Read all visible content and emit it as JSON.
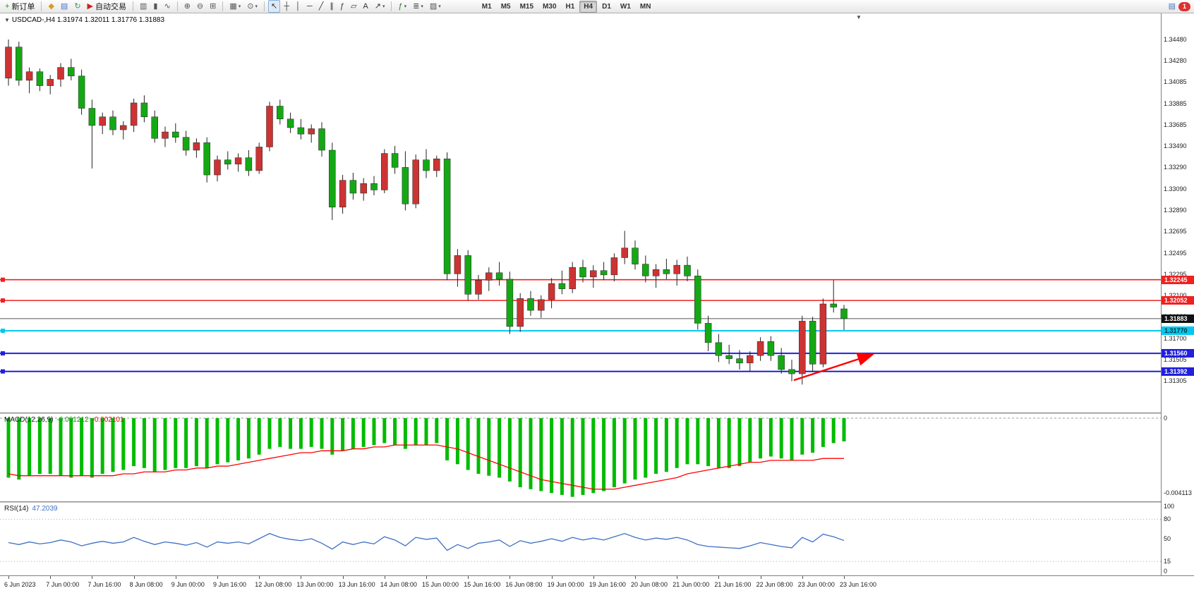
{
  "toolbar": {
    "groups": [
      [
        {
          "name": "new-order",
          "glyph": "+",
          "color": "#18a018",
          "label": "新订单"
        }
      ],
      [
        {
          "name": "charts-profile",
          "glyph": "◆",
          "color": "#dd9922"
        },
        {
          "name": "market-watch",
          "glyph": "▤",
          "color": "#4a74c0"
        },
        {
          "name": "refresh",
          "glyph": "↻",
          "color": "#22a060"
        },
        {
          "name": "auto-trading",
          "glyph": "▶",
          "color": "#cc2222",
          "label": "自动交易"
        }
      ],
      [
        {
          "name": "bar-chart-mode",
          "glyph": "▥",
          "color": "#555555"
        },
        {
          "name": "candle-chart-mode",
          "glyph": "▮",
          "color": "#555555"
        },
        {
          "name": "line-chart-mode",
          "glyph": "∿",
          "color": "#555555"
        }
      ],
      [
        {
          "name": "zoom-in",
          "glyph": "⊕",
          "color": "#555555"
        },
        {
          "name": "zoom-out",
          "glyph": "⊖",
          "color": "#555555"
        },
        {
          "name": "tile-windows",
          "glyph": "⊞",
          "color": "#555555"
        }
      ],
      [
        {
          "name": "new-chart",
          "glyph": "▦",
          "color": "#555555",
          "dropdown": true
        },
        {
          "name": "profiles",
          "glyph": "⊙",
          "color": "#555555",
          "dropdown": true
        }
      ],
      [
        {
          "name": "cursor-tool",
          "glyph": "↖",
          "color": "#333333",
          "active": true
        },
        {
          "name": "crosshair-tool",
          "glyph": "┼",
          "color": "#333333"
        },
        {
          "name": "vertical-line-tool",
          "glyph": "│",
          "color": "#333333"
        },
        {
          "name": "horizontal-line-tool",
          "glyph": "─",
          "color": "#333333"
        },
        {
          "name": "trendline-tool",
          "glyph": "╱",
          "color": "#333333"
        },
        {
          "name": "channel-tool",
          "glyph": "∥",
          "color": "#333333"
        },
        {
          "name": "fibonacci-tool",
          "glyph": "ƒ",
          "color": "#333333"
        },
        {
          "name": "shapes-tool",
          "glyph": "▱",
          "color": "#333333"
        },
        {
          "name": "text-tool",
          "glyph": "A",
          "color": "#333333"
        },
        {
          "name": "arrow-tool",
          "glyph": "↗",
          "color": "#333333",
          "dropdown": true
        }
      ],
      [
        {
          "name": "indicators",
          "glyph": "ƒ",
          "color": "#2a7a2a",
          "dropdown": true
        },
        {
          "name": "periods",
          "glyph": "≣",
          "color": "#555555",
          "dropdown": true
        },
        {
          "name": "templates",
          "glyph": "▨",
          "color": "#555555",
          "dropdown": true
        }
      ]
    ],
    "timeframes": [
      "M1",
      "M5",
      "M15",
      "M30",
      "H1",
      "H4",
      "D1",
      "W1",
      "MN"
    ],
    "active_timeframe": "H4",
    "notification_count": "1"
  },
  "chart": {
    "header": "USDCAD-,H4  1.31974 1.32011 1.31776 1.31883"
  },
  "chart_data": {
    "type": "candlestick",
    "symbol": "USDCAD",
    "period": "H4",
    "ohlc_current": {
      "open": "1.31974",
      "high": "1.32011",
      "low": "1.31776",
      "close": "1.31883"
    },
    "colors": {
      "up": "#cc3333",
      "down": "#15a815",
      "wick": "#222222",
      "macd_hist": "#00bb00",
      "macd_signal": "#ff0000",
      "rsi": "#3e6fc4"
    },
    "price_axis": {
      "top_price": 1.3448,
      "bottom_price": 1.31305,
      "labels": [
        "1.34480",
        "1.34280",
        "1.34085",
        "1.33885",
        "1.33685",
        "1.33490",
        "1.33290",
        "1.33090",
        "1.32890",
        "1.32695",
        "1.32495",
        "1.32295",
        "1.32100",
        "1.31900",
        "1.31700",
        "1.31505",
        "1.31305"
      ]
    },
    "time_labels": [
      "6 Jun 2023",
      "7 Jun 00:00",
      "7 Jun 16:00",
      "8 Jun 08:00",
      "9 Jun 00:00",
      "9 Jun 16:00",
      "12 Jun 08:00",
      "13 Jun 00:00",
      "13 Jun 16:00",
      "14 Jun 08:00",
      "15 Jun 00:00",
      "15 Jun 16:00",
      "16 Jun 08:00",
      "19 Jun 00:00",
      "19 Jun 16:00",
      "20 Jun 08:00",
      "21 Jun 00:00",
      "21 Jun 16:00",
      "22 Jun 08:00",
      "23 Jun 00:00",
      "23 Jun 16:00"
    ],
    "label_step": 4,
    "candles": [
      [
        1.3412,
        1.3448,
        1.3405,
        1.3441
      ],
      [
        1.3441,
        1.3446,
        1.3405,
        1.341
      ],
      [
        1.341,
        1.3422,
        1.3398,
        1.3418
      ],
      [
        1.3418,
        1.3421,
        1.34,
        1.3405
      ],
      [
        1.3405,
        1.3415,
        1.3397,
        1.3411
      ],
      [
        1.3411,
        1.3426,
        1.3404,
        1.3422
      ],
      [
        1.3422,
        1.343,
        1.341,
        1.3414
      ],
      [
        1.3414,
        1.342,
        1.3378,
        1.3384
      ],
      [
        1.3384,
        1.3392,
        1.3328,
        1.3368
      ],
      [
        1.3368,
        1.338,
        1.336,
        1.3376
      ],
      [
        1.3376,
        1.3382,
        1.3359,
        1.3364
      ],
      [
        1.3364,
        1.3372,
        1.3355,
        1.3368
      ],
      [
        1.3368,
        1.3393,
        1.3362,
        1.3389
      ],
      [
        1.3389,
        1.3396,
        1.3371,
        1.3376
      ],
      [
        1.3376,
        1.3382,
        1.3352,
        1.3356
      ],
      [
        1.3356,
        1.3367,
        1.3348,
        1.3362
      ],
      [
        1.3362,
        1.337,
        1.3352,
        1.3357
      ],
      [
        1.3357,
        1.3363,
        1.334,
        1.3345
      ],
      [
        1.3345,
        1.3356,
        1.3338,
        1.3352
      ],
      [
        1.3352,
        1.3357,
        1.3315,
        1.3322
      ],
      [
        1.3322,
        1.334,
        1.3316,
        1.3336
      ],
      [
        1.3336,
        1.3344,
        1.3327,
        1.3332
      ],
      [
        1.3332,
        1.3342,
        1.3325,
        1.3338
      ],
      [
        1.3338,
        1.3345,
        1.3321,
        1.3326
      ],
      [
        1.3326,
        1.3352,
        1.3323,
        1.3348
      ],
      [
        1.3348,
        1.339,
        1.3344,
        1.3386
      ],
      [
        1.3386,
        1.3392,
        1.3369,
        1.3374
      ],
      [
        1.3374,
        1.338,
        1.3361,
        1.3366
      ],
      [
        1.3366,
        1.3374,
        1.3355,
        1.336
      ],
      [
        1.336,
        1.3369,
        1.3352,
        1.3365
      ],
      [
        1.3365,
        1.3371,
        1.3339,
        1.3345
      ],
      [
        1.3345,
        1.3352,
        1.328,
        1.3292
      ],
      [
        1.3292,
        1.3322,
        1.3286,
        1.3317
      ],
      [
        1.3317,
        1.3324,
        1.3299,
        1.3305
      ],
      [
        1.3305,
        1.3319,
        1.3298,
        1.3314
      ],
      [
        1.3314,
        1.3321,
        1.3303,
        1.3308
      ],
      [
        1.3308,
        1.3346,
        1.3305,
        1.3342
      ],
      [
        1.3342,
        1.3349,
        1.3323,
        1.3329
      ],
      [
        1.3329,
        1.3344,
        1.3289,
        1.3295
      ],
      [
        1.3295,
        1.3341,
        1.3291,
        1.3336
      ],
      [
        1.3336,
        1.3346,
        1.3319,
        1.3326
      ],
      [
        1.3326,
        1.334,
        1.332,
        1.3337
      ],
      [
        1.3337,
        1.3343,
        1.3224,
        1.323
      ],
      [
        1.323,
        1.3253,
        1.3218,
        1.3247
      ],
      [
        1.3247,
        1.3252,
        1.3205,
        1.3211
      ],
      [
        1.3211,
        1.3229,
        1.3206,
        1.3224
      ],
      [
        1.3224,
        1.3236,
        1.3214,
        1.3231
      ],
      [
        1.3231,
        1.3241,
        1.3219,
        1.3225
      ],
      [
        1.3225,
        1.3232,
        1.3174,
        1.3181
      ],
      [
        1.3181,
        1.3212,
        1.3176,
        1.3207
      ],
      [
        1.3207,
        1.3214,
        1.3191,
        1.3196
      ],
      [
        1.3196,
        1.321,
        1.3189,
        1.3206
      ],
      [
        1.3206,
        1.3226,
        1.3198,
        1.3221
      ],
      [
        1.3221,
        1.3233,
        1.3211,
        1.3216
      ],
      [
        1.3216,
        1.3241,
        1.3212,
        1.3236
      ],
      [
        1.3236,
        1.3243,
        1.3222,
        1.3227
      ],
      [
        1.3227,
        1.3238,
        1.3217,
        1.3233
      ],
      [
        1.3233,
        1.3241,
        1.3224,
        1.3229
      ],
      [
        1.3229,
        1.3249,
        1.3223,
        1.3245
      ],
      [
        1.3245,
        1.327,
        1.3239,
        1.3254
      ],
      [
        1.3254,
        1.3261,
        1.3234,
        1.3239
      ],
      [
        1.3239,
        1.3247,
        1.3222,
        1.3228
      ],
      [
        1.3228,
        1.3239,
        1.3217,
        1.3234
      ],
      [
        1.3234,
        1.3244,
        1.3225,
        1.323
      ],
      [
        1.323,
        1.3243,
        1.3219,
        1.3238
      ],
      [
        1.3238,
        1.3246,
        1.3223,
        1.3228
      ],
      [
        1.3228,
        1.3234,
        1.3178,
        1.3184
      ],
      [
        1.3184,
        1.3191,
        1.3158,
        1.3166
      ],
      [
        1.3166,
        1.3174,
        1.3148,
        1.3154
      ],
      [
        1.3154,
        1.3164,
        1.3146,
        1.3151
      ],
      [
        1.3151,
        1.3159,
        1.3141,
        1.3147
      ],
      [
        1.3147,
        1.3158,
        1.3139,
        1.3154
      ],
      [
        1.3154,
        1.3171,
        1.3149,
        1.3167
      ],
      [
        1.3167,
        1.3172,
        1.3149,
        1.3154
      ],
      [
        1.3154,
        1.3161,
        1.3137,
        1.3141
      ],
      [
        1.3141,
        1.315,
        1.313,
        1.3137
      ],
      [
        1.3137,
        1.3191,
        1.3127,
        1.3186
      ],
      [
        1.3186,
        1.319,
        1.3139,
        1.3146
      ],
      [
        1.3146,
        1.3207,
        1.3143,
        1.3202
      ],
      [
        1.3202,
        1.3224,
        1.3194,
        1.3199
      ],
      [
        1.31974,
        1.32011,
        1.31776,
        1.31883
      ]
    ],
    "hlines": [
      {
        "name": "resistance-line-1",
        "price": 1.32245,
        "tag": "1.32245",
        "color": "#f02020",
        "width": 1.6,
        "tag_bg": "#f02020",
        "tag_color": "#ffffff",
        "handle": true
      },
      {
        "name": "resistance-line-2",
        "price": 1.32052,
        "tag": "1.32052",
        "color": "#f02020",
        "width": 1.6,
        "tag_bg": "#f02020",
        "tag_color": "#ffffff",
        "handle": true
      },
      {
        "name": "bid-price-line",
        "price": 1.31883,
        "tag": "1.31883",
        "color": "#555555",
        "width": 1,
        "tag_bg": "#111111",
        "tag_color": "#ffffff",
        "handle": false
      },
      {
        "name": "support-line-cyan",
        "price": 1.3177,
        "tag": "1.31770",
        "color": "#00c8f0",
        "width": 2,
        "tag_bg": "#00c8f0",
        "tag_color": "#00303d",
        "handle": true
      },
      {
        "name": "support-line-blue-1",
        "price": 1.3156,
        "tag": "1.31560",
        "color": "#2020dd",
        "width": 2,
        "tag_bg": "#2020dd",
        "tag_color": "#ffffff",
        "handle": true
      },
      {
        "name": "support-line-blue-2",
        "price": 1.31392,
        "tag": "1.31392",
        "color": "#2020dd",
        "width": 2,
        "tag_bg": "#2020dd",
        "tag_color": "#ffffff",
        "handle": true
      }
    ],
    "trend_arrow": {
      "from_index": 75.2,
      "from_price": 1.3131,
      "to_index": 82.6,
      "to_price": 1.31545,
      "color": "#ff0000"
    },
    "macd": {
      "label": "MACD(12,26,9)",
      "value_main": "-0.001212",
      "value_signal": "-0.002101",
      "min": -0.004113,
      "axis_top_label": "0",
      "axis_bottom_label": "-0.004113",
      "histogram": [
        -0.0031,
        -0.0032,
        -0.003,
        -0.0029,
        -0.0029,
        -0.003,
        -0.0031,
        -0.003,
        -0.0031,
        -0.0029,
        -0.0028,
        -0.0027,
        -0.0025,
        -0.0026,
        -0.0028,
        -0.0027,
        -0.0026,
        -0.0026,
        -0.0025,
        -0.0026,
        -0.0024,
        -0.0023,
        -0.0022,
        -0.0021,
        -0.0019,
        -0.0016,
        -0.0015,
        -0.0016,
        -0.0016,
        -0.0015,
        -0.0016,
        -0.0019,
        -0.0017,
        -0.0016,
        -0.0015,
        -0.0014,
        -0.0013,
        -0.0014,
        -0.0016,
        -0.0014,
        -0.0014,
        -0.0013,
        -0.0022,
        -0.0024,
        -0.0027,
        -0.0029,
        -0.003,
        -0.0031,
        -0.0033,
        -0.0036,
        -0.0037,
        -0.0038,
        -0.0039,
        -0.004,
        -0.0041,
        -0.004,
        -0.0039,
        -0.0038,
        -0.0036,
        -0.0034,
        -0.0032,
        -0.0031,
        -0.0029,
        -0.0028,
        -0.0026,
        -0.0024,
        -0.0024,
        -0.0025,
        -0.0026,
        -0.0026,
        -0.0025,
        -0.0023,
        -0.0021,
        -0.002,
        -0.0021,
        -0.0022,
        -0.0019,
        -0.0018,
        -0.0015,
        -0.0013,
        -0.001212
      ],
      "signal": [
        -0.0029,
        -0.003,
        -0.003,
        -0.003,
        -0.003,
        -0.003,
        -0.003,
        -0.003,
        -0.003,
        -0.003,
        -0.003,
        -0.0029,
        -0.0029,
        -0.0028,
        -0.0028,
        -0.0028,
        -0.0027,
        -0.0027,
        -0.0026,
        -0.0026,
        -0.0025,
        -0.0025,
        -0.0024,
        -0.0023,
        -0.0022,
        -0.0021,
        -0.002,
        -0.0019,
        -0.0018,
        -0.0018,
        -0.0017,
        -0.0017,
        -0.0017,
        -0.0016,
        -0.0016,
        -0.0015,
        -0.0015,
        -0.0014,
        -0.0014,
        -0.0014,
        -0.0014,
        -0.0014,
        -0.0015,
        -0.0016,
        -0.0018,
        -0.002,
        -0.0022,
        -0.0024,
        -0.0026,
        -0.0028,
        -0.003,
        -0.0032,
        -0.0033,
        -0.0034,
        -0.0035,
        -0.0036,
        -0.0037,
        -0.0037,
        -0.0037,
        -0.0036,
        -0.0035,
        -0.0034,
        -0.0033,
        -0.0032,
        -0.0031,
        -0.0029,
        -0.0028,
        -0.0027,
        -0.0026,
        -0.0025,
        -0.0024,
        -0.0023,
        -0.0023,
        -0.0022,
        -0.0022,
        -0.0022,
        -0.0022,
        -0.0022,
        -0.0021,
        -0.0021,
        -0.002101
      ]
    },
    "rsi": {
      "label": "RSI(14)",
      "value": "47.2039",
      "axis_labels": [
        "100",
        "80",
        "50",
        "15",
        "0"
      ],
      "level_lines": [
        80,
        15
      ],
      "values": [
        44,
        41,
        45,
        42,
        44,
        48,
        45,
        39,
        43,
        46,
        43,
        45,
        52,
        46,
        41,
        45,
        43,
        40,
        44,
        37,
        45,
        43,
        45,
        42,
        50,
        58,
        52,
        49,
        47,
        50,
        43,
        34,
        45,
        41,
        45,
        42,
        53,
        48,
        39,
        52,
        49,
        51,
        32,
        41,
        35,
        43,
        45,
        48,
        38,
        47,
        43,
        46,
        50,
        46,
        52,
        48,
        51,
        48,
        53,
        58,
        52,
        48,
        51,
        49,
        52,
        48,
        41,
        38,
        37,
        36,
        35,
        39,
        44,
        41,
        38,
        36,
        52,
        45,
        57,
        53,
        47.2
      ]
    }
  }
}
